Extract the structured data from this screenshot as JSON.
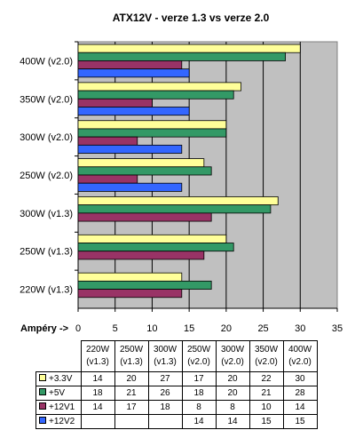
{
  "chart_data": {
    "type": "bar",
    "orientation": "horizontal",
    "title": "ATX12V - verze 1.3 vs verze 2.0",
    "xlabel": "Ampéry ->",
    "ylabel": "",
    "xlim": [
      0,
      35
    ],
    "x_ticks": [
      "0",
      "5",
      "10",
      "15",
      "20",
      "25",
      "30",
      "35"
    ],
    "grid": true,
    "plot_background": "#c0c0c0",
    "categories": [
      "220W (v1.3)",
      "250W (v1.3)",
      "300W (v1.3)",
      "250W (v2.0)",
      "300W (v2.0)",
      "350W (v2.0)",
      "400W (v2.0)"
    ],
    "series": [
      {
        "name": "+3.3V",
        "color": "#ffff99",
        "values": [
          14,
          20,
          27,
          17,
          20,
          22,
          30
        ]
      },
      {
        "name": "+5V",
        "color": "#339966",
        "values": [
          18,
          21,
          26,
          18,
          20,
          21,
          28
        ]
      },
      {
        "name": "+12V1",
        "color": "#993366",
        "values": [
          14,
          17,
          18,
          8,
          8,
          10,
          14
        ]
      },
      {
        "name": "+12V2",
        "color": "#3366ff",
        "values": [
          null,
          null,
          null,
          14,
          14,
          15,
          15
        ]
      }
    ],
    "table": {
      "headers": [
        [
          "220W",
          "(v1.3)"
        ],
        [
          "250W",
          "(v1.3)"
        ],
        [
          "300W",
          "(v1.3)"
        ],
        [
          "250W",
          "(v2.0)"
        ],
        [
          "300W",
          "(v2.0)"
        ],
        [
          "350W",
          "(v2.0)"
        ],
        [
          "400W",
          "(v2.0)"
        ]
      ],
      "rows": [
        [
          "14",
          "20",
          "27",
          "17",
          "20",
          "22",
          "30"
        ],
        [
          "18",
          "21",
          "26",
          "18",
          "20",
          "21",
          "28"
        ],
        [
          "14",
          "17",
          "18",
          "8",
          "8",
          "10",
          "14"
        ],
        [
          "",
          "",
          "",
          "14",
          "14",
          "15",
          "15"
        ]
      ]
    }
  }
}
